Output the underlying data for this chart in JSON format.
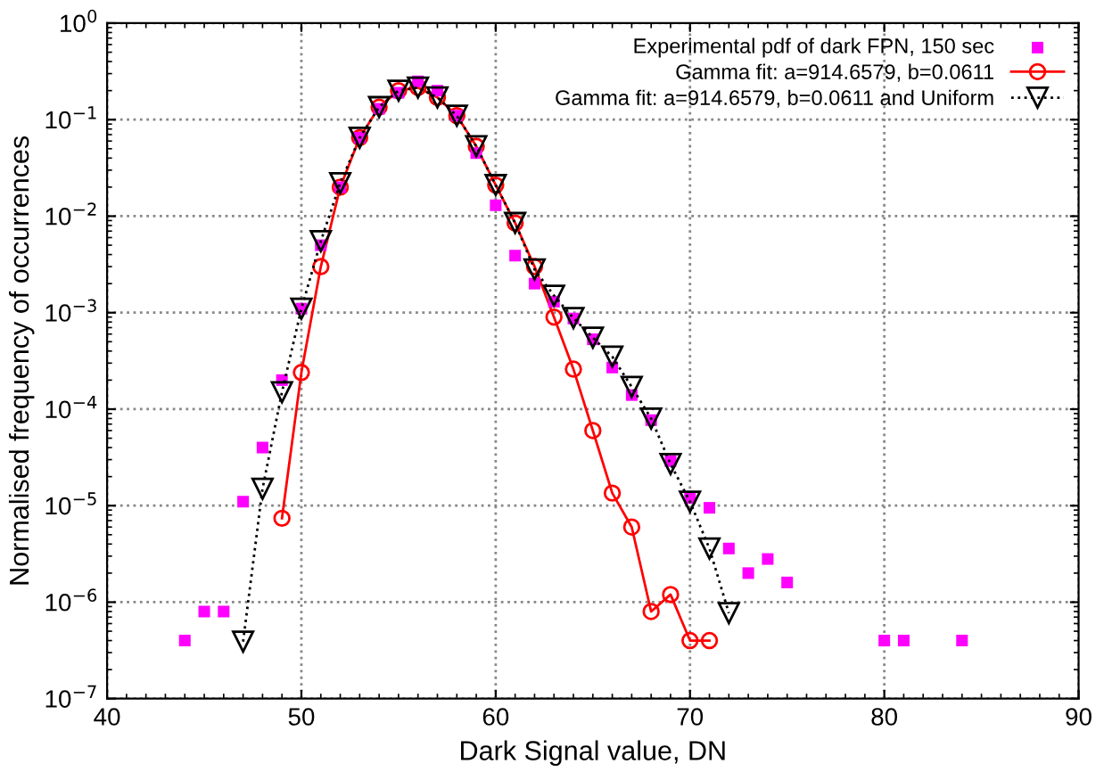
{
  "chart_data": {
    "type": "line",
    "xlabel": "Dark Signal value, DN",
    "ylabel": "Normalised frequency of occurrences",
    "xlim": [
      40,
      90
    ],
    "xticks": [
      40,
      50,
      60,
      70,
      80,
      90
    ],
    "log": "y",
    "ylim": [
      1e-07,
      1
    ],
    "yticks": [
      {
        "value": 1e-07,
        "label": "10$^{−7}$"
      },
      {
        "value": 1e-06,
        "label": "10$^{−6}$"
      },
      {
        "value": 1e-05,
        "label": "10$^{−5}$"
      },
      {
        "value": 0.0001,
        "label": "10$^{−4}$"
      },
      {
        "value": 0.001,
        "label": "10$^{−3}$"
      },
      {
        "value": 0.01,
        "label": "10$^{−2}$"
      },
      {
        "value": 0.1,
        "label": "10$^{−1}$"
      },
      {
        "value": 1,
        "label": "10$^{0}$"
      }
    ],
    "grid": true,
    "legend": "top right",
    "series": [
      {
        "name": "Experimental pdf of dark FPN, 150 sec",
        "type": "scatter",
        "marker": "square",
        "color": "#ff00ff",
        "x": [
          44,
          45,
          46,
          47,
          48,
          49,
          50,
          51,
          52,
          53,
          54,
          55,
          56,
          57,
          58,
          59,
          60,
          61,
          62,
          63,
          64,
          65,
          66,
          67,
          68,
          69,
          70,
          71,
          72,
          73,
          74,
          75,
          80,
          81,
          84
        ],
        "values": [
          4e-07,
          8e-07,
          8e-07,
          1.1e-05,
          4e-05,
          0.0002,
          0.0011,
          0.005,
          0.02,
          0.065,
          0.13,
          0.19,
          0.25,
          0.2,
          0.11,
          0.045,
          0.013,
          0.0039,
          0.002,
          0.0013,
          0.00087,
          0.00053,
          0.00027,
          0.00014,
          7.7e-05,
          2.9e-05,
          1.2e-05,
          9.5e-06,
          3.6e-06,
          2e-06,
          2.8e-06,
          1.6e-06,
          4e-07,
          4e-07,
          4e-07
        ]
      },
      {
        "name": "Gamma fit: a=914.6579, b=0.0611",
        "marker": "circle",
        "line_style": "solid",
        "color": "#ff0000",
        "x": [
          49,
          50,
          51,
          52,
          53,
          54,
          55,
          56,
          57,
          58,
          59,
          60,
          61,
          62,
          63,
          64,
          65,
          66,
          67,
          68,
          69,
          70,
          71
        ],
        "values": [
          7.4e-06,
          0.00024,
          0.003,
          0.02,
          0.065,
          0.135,
          0.2,
          0.215,
          0.17,
          0.11,
          0.053,
          0.021,
          0.0085,
          0.003,
          0.0009,
          0.00026,
          6e-05,
          1.35e-05,
          6e-06,
          8e-07,
          1.2e-06,
          4e-07,
          4e-07
        ]
      },
      {
        "name": "Gamma fit: a=914.6579, b=0.0611 and Uniform",
        "marker": "triangle",
        "line_style": "dotted",
        "color": "#000000",
        "x": [
          47,
          48,
          49,
          50,
          51,
          52,
          53,
          54,
          55,
          56,
          57,
          58,
          59,
          60,
          61,
          62,
          63,
          64,
          65,
          66,
          67,
          68,
          69,
          70,
          71,
          72
        ],
        "values": [
          3.9e-07,
          1.5e-05,
          0.00015,
          0.0011,
          0.0055,
          0.022,
          0.065,
          0.135,
          0.2,
          0.215,
          0.17,
          0.11,
          0.053,
          0.021,
          0.0085,
          0.0028,
          0.0015,
          0.00088,
          0.00055,
          0.00035,
          0.00017,
          8e-05,
          2.7e-05,
          1.1e-05,
          3.6e-06,
          7.7e-07
        ]
      }
    ]
  }
}
